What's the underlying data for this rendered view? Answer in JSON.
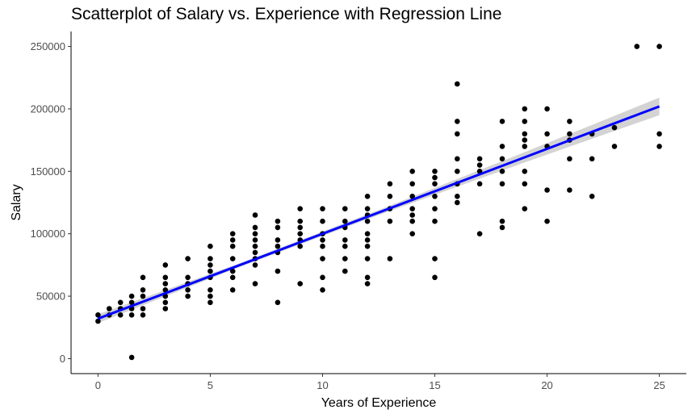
{
  "chart_data": {
    "type": "scatter",
    "title": "Scatterplot of Salary vs. Experience with Regression Line",
    "xlabel": "Years of Experience",
    "ylabel": "Salary",
    "xlim": [
      -1.2,
      26.2
    ],
    "ylim": [
      -12000,
      262000
    ],
    "x_ticks": [
      0,
      5,
      10,
      15,
      20,
      25
    ],
    "y_ticks": [
      0,
      50000,
      100000,
      150000,
      200000,
      250000
    ],
    "grid": false,
    "colors": {
      "points": "#000000",
      "regression_line": "#0000ff",
      "confidence_band": "#c8c8c8"
    },
    "regression_line": {
      "x": [
        0,
        25
      ],
      "y": [
        32000,
        202000
      ],
      "confidence_band_halfwidth": [
        3500,
        1500,
        2000,
        4000,
        7000
      ]
    },
    "points": [
      {
        "x": 0,
        "y": 30000
      },
      {
        "x": 0,
        "y": 35000
      },
      {
        "x": 0.5,
        "y": 35000
      },
      {
        "x": 0.5,
        "y": 40000
      },
      {
        "x": 1,
        "y": 35000
      },
      {
        "x": 1,
        "y": 40000
      },
      {
        "x": 1,
        "y": 45000
      },
      {
        "x": 1.5,
        "y": 1000
      },
      {
        "x": 1.5,
        "y": 35000
      },
      {
        "x": 1.5,
        "y": 40000
      },
      {
        "x": 1.5,
        "y": 45000
      },
      {
        "x": 1.5,
        "y": 50000
      },
      {
        "x": 2,
        "y": 35000
      },
      {
        "x": 2,
        "y": 40000
      },
      {
        "x": 2,
        "y": 50000
      },
      {
        "x": 2,
        "y": 55000
      },
      {
        "x": 2,
        "y": 65000
      },
      {
        "x": 3,
        "y": 40000
      },
      {
        "x": 3,
        "y": 45000
      },
      {
        "x": 3,
        "y": 50000
      },
      {
        "x": 3,
        "y": 55000
      },
      {
        "x": 3,
        "y": 60000
      },
      {
        "x": 3,
        "y": 65000
      },
      {
        "x": 3,
        "y": 75000
      },
      {
        "x": 4,
        "y": 50000
      },
      {
        "x": 4,
        "y": 55000
      },
      {
        "x": 4,
        "y": 60000
      },
      {
        "x": 4,
        "y": 65000
      },
      {
        "x": 4,
        "y": 80000
      },
      {
        "x": 5,
        "y": 45000
      },
      {
        "x": 5,
        "y": 50000
      },
      {
        "x": 5,
        "y": 55000
      },
      {
        "x": 5,
        "y": 65000
      },
      {
        "x": 5,
        "y": 70000
      },
      {
        "x": 5,
        "y": 75000
      },
      {
        "x": 5,
        "y": 80000
      },
      {
        "x": 5,
        "y": 90000
      },
      {
        "x": 6,
        "y": 55000
      },
      {
        "x": 6,
        "y": 65000
      },
      {
        "x": 6,
        "y": 70000
      },
      {
        "x": 6,
        "y": 80000
      },
      {
        "x": 6,
        "y": 90000
      },
      {
        "x": 6,
        "y": 95000
      },
      {
        "x": 6,
        "y": 100000
      },
      {
        "x": 7,
        "y": 60000
      },
      {
        "x": 7,
        "y": 75000
      },
      {
        "x": 7,
        "y": 80000
      },
      {
        "x": 7,
        "y": 85000
      },
      {
        "x": 7,
        "y": 90000
      },
      {
        "x": 7,
        "y": 95000
      },
      {
        "x": 7,
        "y": 100000
      },
      {
        "x": 7,
        "y": 105000
      },
      {
        "x": 7,
        "y": 115000
      },
      {
        "x": 8,
        "y": 45000
      },
      {
        "x": 8,
        "y": 70000
      },
      {
        "x": 8,
        "y": 85000
      },
      {
        "x": 8,
        "y": 90000
      },
      {
        "x": 8,
        "y": 95000
      },
      {
        "x": 8,
        "y": 105000
      },
      {
        "x": 8,
        "y": 110000
      },
      {
        "x": 9,
        "y": 60000
      },
      {
        "x": 9,
        "y": 90000
      },
      {
        "x": 9,
        "y": 95000
      },
      {
        "x": 9,
        "y": 100000
      },
      {
        "x": 9,
        "y": 105000
      },
      {
        "x": 9,
        "y": 110000
      },
      {
        "x": 9,
        "y": 120000
      },
      {
        "x": 10,
        "y": 55000
      },
      {
        "x": 10,
        "y": 65000
      },
      {
        "x": 10,
        "y": 80000
      },
      {
        "x": 10,
        "y": 90000
      },
      {
        "x": 10,
        "y": 95000
      },
      {
        "x": 10,
        "y": 100000
      },
      {
        "x": 10,
        "y": 110000
      },
      {
        "x": 10,
        "y": 120000
      },
      {
        "x": 11,
        "y": 70000
      },
      {
        "x": 11,
        "y": 80000
      },
      {
        "x": 11,
        "y": 90000
      },
      {
        "x": 11,
        "y": 95000
      },
      {
        "x": 11,
        "y": 105000
      },
      {
        "x": 11,
        "y": 110000
      },
      {
        "x": 11,
        "y": 120000
      },
      {
        "x": 12,
        "y": 60000
      },
      {
        "x": 12,
        "y": 65000
      },
      {
        "x": 12,
        "y": 80000
      },
      {
        "x": 12,
        "y": 90000
      },
      {
        "x": 12,
        "y": 95000
      },
      {
        "x": 12,
        "y": 100000
      },
      {
        "x": 12,
        "y": 110000
      },
      {
        "x": 12,
        "y": 115000
      },
      {
        "x": 12,
        "y": 120000
      },
      {
        "x": 12,
        "y": 130000
      },
      {
        "x": 13,
        "y": 80000
      },
      {
        "x": 13,
        "y": 110000
      },
      {
        "x": 13,
        "y": 120000
      },
      {
        "x": 13,
        "y": 130000
      },
      {
        "x": 13,
        "y": 140000
      },
      {
        "x": 14,
        "y": 100000
      },
      {
        "x": 14,
        "y": 110000
      },
      {
        "x": 14,
        "y": 115000
      },
      {
        "x": 14,
        "y": 120000
      },
      {
        "x": 14,
        "y": 130000
      },
      {
        "x": 14,
        "y": 140000
      },
      {
        "x": 14,
        "y": 150000
      },
      {
        "x": 15,
        "y": 65000
      },
      {
        "x": 15,
        "y": 80000
      },
      {
        "x": 15,
        "y": 110000
      },
      {
        "x": 15,
        "y": 120000
      },
      {
        "x": 15,
        "y": 130000
      },
      {
        "x": 15,
        "y": 140000
      },
      {
        "x": 15,
        "y": 145000
      },
      {
        "x": 15,
        "y": 150000
      },
      {
        "x": 16,
        "y": 125000
      },
      {
        "x": 16,
        "y": 130000
      },
      {
        "x": 16,
        "y": 140000
      },
      {
        "x": 16,
        "y": 150000
      },
      {
        "x": 16,
        "y": 160000
      },
      {
        "x": 16,
        "y": 180000
      },
      {
        "x": 16,
        "y": 190000
      },
      {
        "x": 16,
        "y": 220000
      },
      {
        "x": 17,
        "y": 100000
      },
      {
        "x": 17,
        "y": 140000
      },
      {
        "x": 17,
        "y": 150000
      },
      {
        "x": 17,
        "y": 155000
      },
      {
        "x": 17,
        "y": 160000
      },
      {
        "x": 18,
        "y": 105000
      },
      {
        "x": 18,
        "y": 110000
      },
      {
        "x": 18,
        "y": 140000
      },
      {
        "x": 18,
        "y": 150000
      },
      {
        "x": 18,
        "y": 160000
      },
      {
        "x": 18,
        "y": 170000
      },
      {
        "x": 18,
        "y": 190000
      },
      {
        "x": 19,
        "y": 120000
      },
      {
        "x": 19,
        "y": 140000
      },
      {
        "x": 19,
        "y": 150000
      },
      {
        "x": 19,
        "y": 170000
      },
      {
        "x": 19,
        "y": 175000
      },
      {
        "x": 19,
        "y": 180000
      },
      {
        "x": 19,
        "y": 190000
      },
      {
        "x": 19,
        "y": 200000
      },
      {
        "x": 20,
        "y": 110000
      },
      {
        "x": 20,
        "y": 135000
      },
      {
        "x": 20,
        "y": 170000
      },
      {
        "x": 20,
        "y": 180000
      },
      {
        "x": 20,
        "y": 200000
      },
      {
        "x": 21,
        "y": 135000
      },
      {
        "x": 21,
        "y": 160000
      },
      {
        "x": 21,
        "y": 175000
      },
      {
        "x": 21,
        "y": 180000
      },
      {
        "x": 21,
        "y": 190000
      },
      {
        "x": 22,
        "y": 130000
      },
      {
        "x": 22,
        "y": 160000
      },
      {
        "x": 22,
        "y": 180000
      },
      {
        "x": 23,
        "y": 170000
      },
      {
        "x": 23,
        "y": 185000
      },
      {
        "x": 24,
        "y": 250000
      },
      {
        "x": 25,
        "y": 170000
      },
      {
        "x": 25,
        "y": 180000
      },
      {
        "x": 25,
        "y": 250000
      }
    ]
  }
}
